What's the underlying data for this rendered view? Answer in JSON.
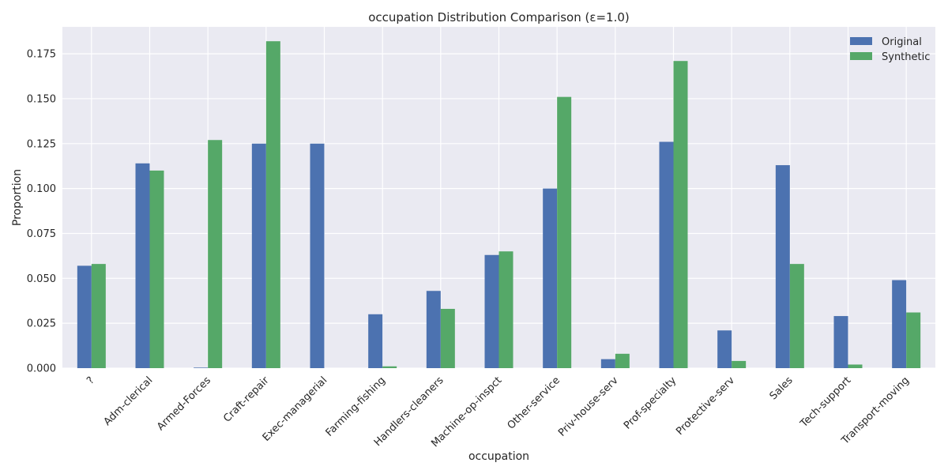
{
  "chart_data": {
    "type": "bar",
    "title": "occupation Distribution Comparison (ε=1.0)",
    "xlabel": "occupation",
    "ylabel": "Proportion",
    "ylim": [
      0,
      0.19
    ],
    "yticks": [
      0.0,
      0.025,
      0.05,
      0.075,
      0.1,
      0.125,
      0.15,
      0.175
    ],
    "ytick_labels": [
      "0.000",
      "0.025",
      "0.050",
      "0.075",
      "0.100",
      "0.125",
      "0.150",
      "0.175"
    ],
    "grid": true,
    "legend_position": "top-right",
    "categories": [
      "?",
      "Adm-clerical",
      "Armed-Forces",
      "Craft-repair",
      "Exec-managerial",
      "Farming-fishing",
      "Handlers-cleaners",
      "Machine-op-inspct",
      "Other-service",
      "Priv-house-serv",
      "Prof-specialty",
      "Protective-serv",
      "Sales",
      "Tech-support",
      "Transport-moving"
    ],
    "series": [
      {
        "name": "Original",
        "color": "#4c72b0",
        "values": [
          0.057,
          0.114,
          0.0003,
          0.125,
          0.125,
          0.03,
          0.043,
          0.063,
          0.1,
          0.005,
          0.126,
          0.021,
          0.113,
          0.029,
          0.049
        ]
      },
      {
        "name": "Synthetic",
        "color": "#55a868",
        "values": [
          0.058,
          0.11,
          0.127,
          0.182,
          0.0,
          0.001,
          0.033,
          0.065,
          0.151,
          0.008,
          0.171,
          0.004,
          0.058,
          0.002,
          0.031
        ]
      }
    ]
  },
  "colors": {
    "plot_background": "#eaeaf2",
    "grid": "#ffffff"
  }
}
